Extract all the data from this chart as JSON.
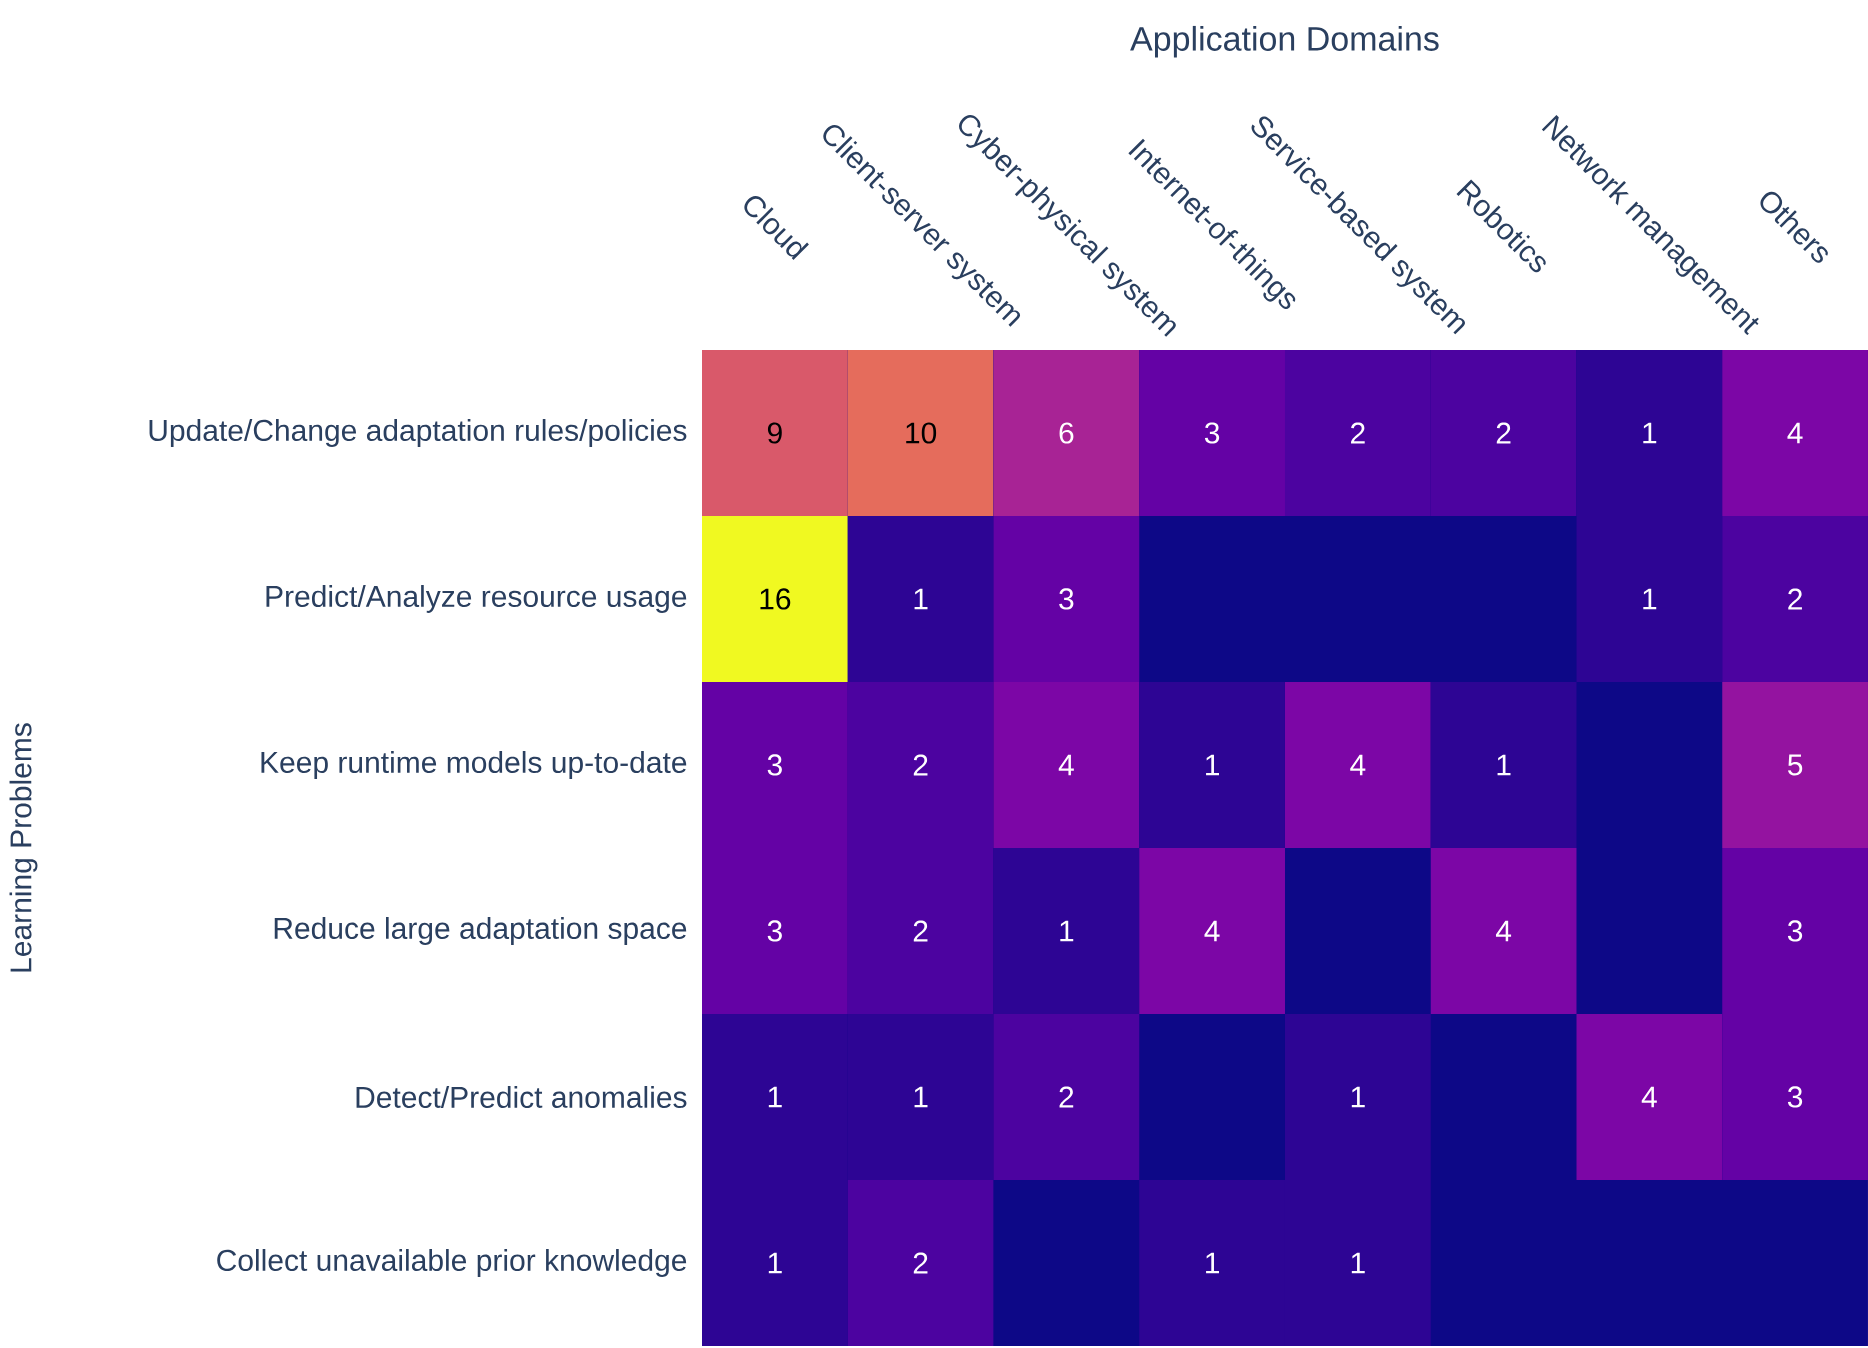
{
  "chart_data": {
    "type": "heatmap",
    "xlabel": "Application Domains",
    "ylabel": "Learning Problems",
    "categories": [
      "Cloud",
      "Client-server system",
      "Cyber-physical system",
      "Internet-of-things",
      "Service-based system",
      "Robotics",
      "Network management",
      "Others"
    ],
    "y_categories": [
      "Update/Change adaptation rules/policies",
      "Predict/Analyze resource usage",
      "Keep runtime models up-to-date",
      "Reduce large adaptation space",
      "Detect/Predict anomalies",
      "Collect unavailable prior knowledge"
    ],
    "cells": [
      [
        9,
        10,
        6,
        3,
        2,
        2,
        1,
        4
      ],
      [
        16,
        1,
        3,
        null,
        null,
        null,
        1,
        2
      ],
      [
        3,
        2,
        4,
        1,
        4,
        1,
        null,
        5
      ],
      [
        3,
        2,
        1,
        4,
        null,
        4,
        null,
        3
      ],
      [
        1,
        1,
        2,
        null,
        1,
        null,
        4,
        3
      ],
      [
        1,
        2,
        null,
        1,
        1,
        null,
        null,
        null
      ]
    ],
    "cell_labels": [
      [
        "9",
        "10",
        "6",
        "3",
        "2",
        "2",
        "1",
        "4"
      ],
      [
        "16",
        "1",
        "3",
        null,
        null,
        null,
        "1",
        "2"
      ],
      [
        "3",
        "2",
        "4",
        "1",
        "4",
        "1",
        null,
        "5"
      ],
      [
        "3",
        "2",
        "1",
        "4",
        null,
        "4",
        null,
        "3"
      ],
      [
        "1",
        "1",
        "2",
        null,
        "1",
        null,
        "4",
        "3"
      ],
      [
        "1",
        "2",
        null,
        "1",
        "1",
        null,
        null,
        null
      ]
    ]
  }
}
